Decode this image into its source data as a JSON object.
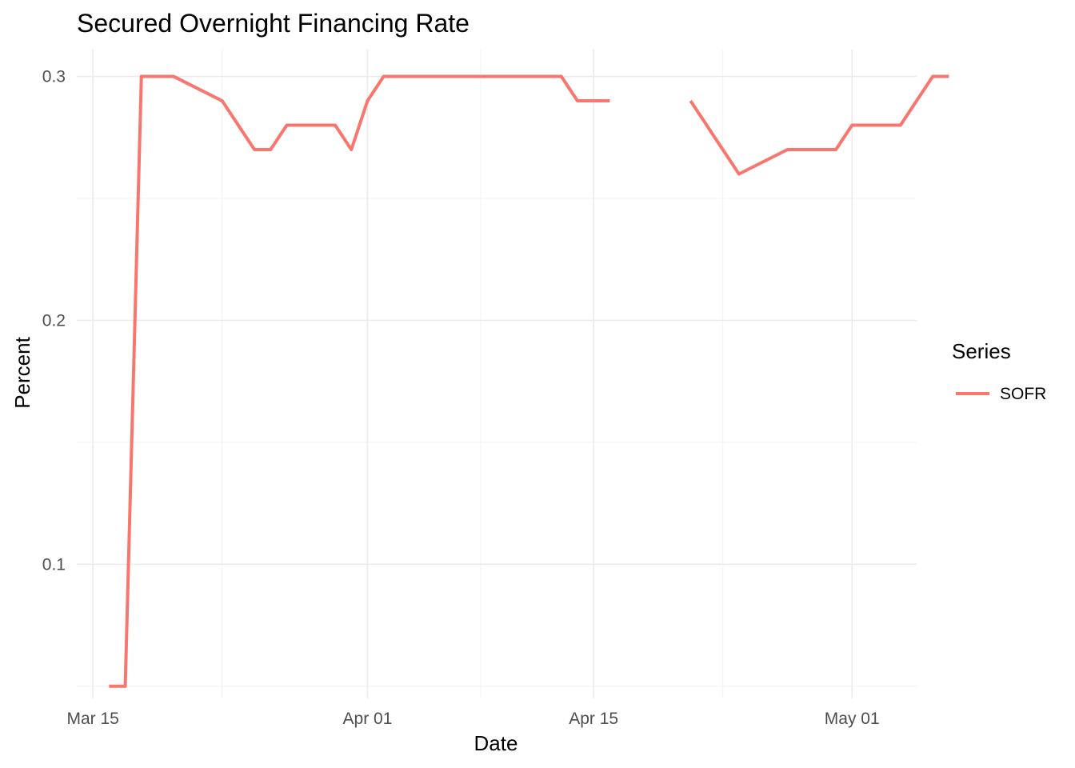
{
  "chart_data": {
    "type": "line",
    "title": "Secured Overnight Financing Rate",
    "xlabel": "Date",
    "ylabel": "Percent",
    "x_type": "date",
    "xlim": [
      "2020-03-14",
      "2020-05-05"
    ],
    "ylim": [
      0.045,
      0.311
    ],
    "x_ticks": [
      {
        "date": "2020-03-15",
        "label": "Mar 15"
      },
      {
        "date": "2020-04-01",
        "label": "Apr 01"
      },
      {
        "date": "2020-04-15",
        "label": "Apr 15"
      },
      {
        "date": "2020-05-01",
        "label": "May 01"
      }
    ],
    "x_minor_ticks": [
      "2020-03-23",
      "2020-04-08",
      "2020-04-23"
    ],
    "y_ticks": [
      {
        "value": 0.1,
        "label": "0.1"
      },
      {
        "value": 0.2,
        "label": "0.2"
      },
      {
        "value": 0.3,
        "label": "0.3"
      }
    ],
    "y_minor_ticks": [
      0.05,
      0.15,
      0.25
    ],
    "grid": true,
    "legend": {
      "title": "Series",
      "placement": "right",
      "entries": [
        {
          "name": "SOFR",
          "color": "#F8766D"
        }
      ]
    },
    "series": [
      {
        "name": "SOFR",
        "color": "#F8766D",
        "points": [
          {
            "x": "2020-03-16",
            "y": 0.05
          },
          {
            "x": "2020-03-17",
            "y": 0.05
          },
          {
            "x": "2020-03-18",
            "y": 0.3
          },
          {
            "x": "2020-03-19",
            "y": 0.3
          },
          {
            "x": "2020-03-20",
            "y": 0.3
          },
          {
            "x": "2020-03-23",
            "y": 0.29
          },
          {
            "x": "2020-03-24",
            "y": 0.28
          },
          {
            "x": "2020-03-25",
            "y": 0.27
          },
          {
            "x": "2020-03-26",
            "y": 0.27
          },
          {
            "x": "2020-03-27",
            "y": 0.28
          },
          {
            "x": "2020-03-30",
            "y": 0.28
          },
          {
            "x": "2020-03-31",
            "y": 0.27
          },
          {
            "x": "2020-04-01",
            "y": 0.29
          },
          {
            "x": "2020-04-02",
            "y": 0.3
          },
          {
            "x": "2020-04-03",
            "y": 0.3
          },
          {
            "x": "2020-04-06",
            "y": 0.3
          },
          {
            "x": "2020-04-07",
            "y": 0.3
          },
          {
            "x": "2020-04-08",
            "y": 0.3
          },
          {
            "x": "2020-04-09",
            "y": 0.3
          },
          {
            "x": "2020-04-10",
            "y": 0.3
          },
          {
            "x": "2020-04-13",
            "y": 0.3
          },
          {
            "x": "2020-04-14",
            "y": 0.29
          },
          {
            "x": "2020-04-15",
            "y": 0.29
          },
          {
            "x": "2020-04-16",
            "y": 0.29
          },
          {
            "x": "2020-04-17",
            "y": null
          },
          {
            "x": "2020-04-20",
            "y": null
          },
          {
            "x": "2020-04-21",
            "y": 0.29
          },
          {
            "x": "2020-04-22",
            "y": 0.28
          },
          {
            "x": "2020-04-23",
            "y": 0.27
          },
          {
            "x": "2020-04-24",
            "y": 0.26
          },
          {
            "x": "2020-04-27",
            "y": 0.27
          },
          {
            "x": "2020-04-28",
            "y": 0.27
          },
          {
            "x": "2020-04-29",
            "y": 0.27
          },
          {
            "x": "2020-04-30",
            "y": 0.27
          },
          {
            "x": "2020-05-01",
            "y": 0.28
          },
          {
            "x": "2020-05-04",
            "y": 0.28
          },
          {
            "x": "2020-05-05",
            "y": 0.29
          },
          {
            "x": "2020-05-06",
            "y": 0.3
          },
          {
            "x": "2020-05-07",
            "y": 0.3
          }
        ]
      }
    ]
  }
}
